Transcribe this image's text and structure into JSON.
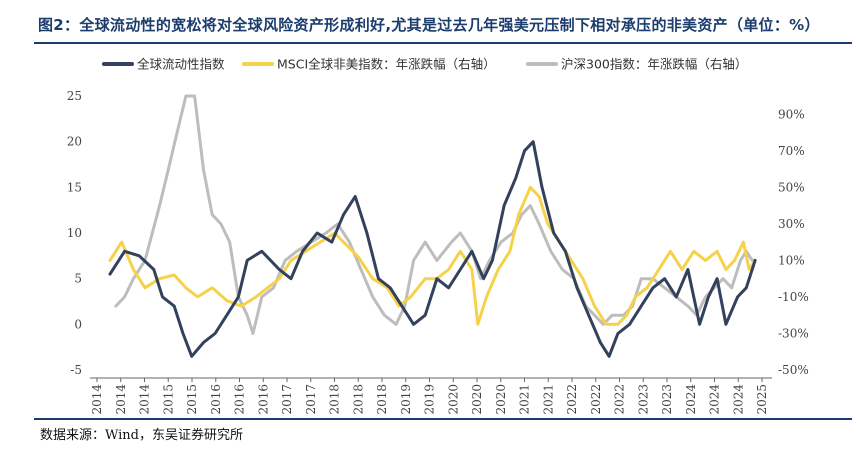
{
  "header": {
    "title": "图2：全球流动性的宽松将对全球风险资产形成利好,尤其是过去几年强美元压制下相对承压的非美资产（单位：%）"
  },
  "footer": {
    "source": "数据来源：Wind，东吴证券研究所"
  },
  "colors": {
    "title": "#1b3c6c",
    "series_liquidity": "#33415c",
    "series_msci": "#f5d24a",
    "series_csi300": "#bdbdbd"
  },
  "chart_data": {
    "type": "line",
    "x_ticks": [
      "2014",
      "2014",
      "2014",
      "2015",
      "2015",
      "2016",
      "2016",
      "2016",
      "2017",
      "2017",
      "2018",
      "2018",
      "2018",
      "2019",
      "2019",
      "2020",
      "2020",
      "2020",
      "2021",
      "2021",
      "2022",
      "2022",
      "2022",
      "2023",
      "2023",
      "2024",
      "2024",
      "2024",
      "2025"
    ],
    "left_axis": {
      "ticks": [
        "-5",
        "0",
        "5",
        "10",
        "15",
        "20",
        "25"
      ],
      "ylim": [
        -5,
        25
      ]
    },
    "right_axis": {
      "ticks": [
        "-50%",
        "-30%",
        "-10%",
        "10%",
        "30%",
        "50%",
        "70%",
        "90%"
      ],
      "ylim": [
        -50,
        100
      ]
    },
    "x_range": [
      2014.0,
      2025.1
    ],
    "series": [
      {
        "name": "全球流动性指数",
        "axis": "left",
        "color": "#33415c",
        "points": [
          [
            2014.0,
            5.5
          ],
          [
            2014.25,
            8
          ],
          [
            2014.5,
            7.5
          ],
          [
            2014.75,
            6
          ],
          [
            2014.9,
            3
          ],
          [
            2015.1,
            2
          ],
          [
            2015.25,
            -1
          ],
          [
            2015.4,
            -3.5
          ],
          [
            2015.6,
            -2
          ],
          [
            2015.8,
            -1
          ],
          [
            2016.0,
            1
          ],
          [
            2016.2,
            3
          ],
          [
            2016.35,
            7
          ],
          [
            2016.6,
            8
          ],
          [
            2016.9,
            6
          ],
          [
            2017.1,
            5
          ],
          [
            2017.3,
            8
          ],
          [
            2017.55,
            10
          ],
          [
            2017.8,
            9
          ],
          [
            2018.0,
            12
          ],
          [
            2018.2,
            14
          ],
          [
            2018.4,
            10
          ],
          [
            2018.6,
            5
          ],
          [
            2018.8,
            4
          ],
          [
            2019.0,
            2
          ],
          [
            2019.2,
            0
          ],
          [
            2019.4,
            1
          ],
          [
            2019.6,
            5
          ],
          [
            2019.8,
            4
          ],
          [
            2020.0,
            6
          ],
          [
            2020.2,
            8
          ],
          [
            2020.4,
            5
          ],
          [
            2020.55,
            7
          ],
          [
            2020.75,
            13
          ],
          [
            2020.95,
            16
          ],
          [
            2021.1,
            19
          ],
          [
            2021.25,
            20
          ],
          [
            2021.4,
            15
          ],
          [
            2021.6,
            10
          ],
          [
            2021.8,
            8
          ],
          [
            2022.0,
            4
          ],
          [
            2022.2,
            1
          ],
          [
            2022.4,
            -2
          ],
          [
            2022.55,
            -3.5
          ],
          [
            2022.7,
            -1
          ],
          [
            2022.9,
            0
          ],
          [
            2023.1,
            2
          ],
          [
            2023.3,
            4
          ],
          [
            2023.5,
            5
          ],
          [
            2023.7,
            3
          ],
          [
            2023.9,
            6
          ],
          [
            2024.1,
            0
          ],
          [
            2024.25,
            3
          ],
          [
            2024.4,
            5
          ],
          [
            2024.55,
            0
          ],
          [
            2024.75,
            3
          ],
          [
            2024.9,
            4
          ],
          [
            2025.05,
            7
          ]
        ]
      },
      {
        "name": "MSCI全球非美指数：年涨跌幅（右轴）",
        "axis": "right",
        "color": "#f5d24a",
        "points": [
          [
            2014.0,
            10
          ],
          [
            2014.2,
            20
          ],
          [
            2014.4,
            5
          ],
          [
            2014.6,
            -5
          ],
          [
            2014.85,
            0
          ],
          [
            2015.1,
            2
          ],
          [
            2015.3,
            -5
          ],
          [
            2015.5,
            -10
          ],
          [
            2015.75,
            -5
          ],
          [
            2016.0,
            -12
          ],
          [
            2016.25,
            -15
          ],
          [
            2016.5,
            -10
          ],
          [
            2016.7,
            -5
          ],
          [
            2016.9,
            0
          ],
          [
            2017.1,
            10
          ],
          [
            2017.35,
            15
          ],
          [
            2017.6,
            20
          ],
          [
            2017.85,
            25
          ],
          [
            2018.0,
            20
          ],
          [
            2018.25,
            12
          ],
          [
            2018.5,
            0
          ],
          [
            2018.75,
            -5
          ],
          [
            2018.95,
            -15
          ],
          [
            2019.15,
            -10
          ],
          [
            2019.4,
            0
          ],
          [
            2019.6,
            0
          ],
          [
            2019.8,
            5
          ],
          [
            2020.0,
            15
          ],
          [
            2020.2,
            5
          ],
          [
            2020.3,
            -25
          ],
          [
            2020.45,
            -10
          ],
          [
            2020.65,
            5
          ],
          [
            2020.85,
            15
          ],
          [
            2021.0,
            35
          ],
          [
            2021.2,
            50
          ],
          [
            2021.35,
            45
          ],
          [
            2021.5,
            30
          ],
          [
            2021.7,
            20
          ],
          [
            2021.9,
            10
          ],
          [
            2022.1,
            0
          ],
          [
            2022.3,
            -15
          ],
          [
            2022.5,
            -25
          ],
          [
            2022.7,
            -25
          ],
          [
            2022.85,
            -20
          ],
          [
            2023.0,
            -10
          ],
          [
            2023.2,
            -5
          ],
          [
            2023.4,
            5
          ],
          [
            2023.6,
            15
          ],
          [
            2023.8,
            5
          ],
          [
            2024.0,
            15
          ],
          [
            2024.2,
            10
          ],
          [
            2024.4,
            15
          ],
          [
            2024.55,
            5
          ],
          [
            2024.7,
            10
          ],
          [
            2024.85,
            20
          ],
          [
            2024.95,
            5
          ],
          [
            2025.05,
            10
          ]
        ]
      },
      {
        "name": "沪深300指数：年涨跌幅（右轴）",
        "axis": "right",
        "color": "#bdbdbd",
        "points": [
          [
            2014.1,
            -15
          ],
          [
            2014.25,
            -10
          ],
          [
            2014.4,
            0
          ],
          [
            2014.6,
            10
          ],
          [
            2014.85,
            40
          ],
          [
            2015.0,
            60
          ],
          [
            2015.15,
            80
          ],
          [
            2015.3,
            100
          ],
          [
            2015.45,
            100
          ],
          [
            2015.6,
            60
          ],
          [
            2015.75,
            35
          ],
          [
            2015.9,
            30
          ],
          [
            2016.05,
            20
          ],
          [
            2016.2,
            -10
          ],
          [
            2016.35,
            -20
          ],
          [
            2016.45,
            -30
          ],
          [
            2016.6,
            -10
          ],
          [
            2016.8,
            -5
          ],
          [
            2017.0,
            10
          ],
          [
            2017.2,
            15
          ],
          [
            2017.45,
            20
          ],
          [
            2017.7,
            25
          ],
          [
            2017.9,
            30
          ],
          [
            2018.1,
            20
          ],
          [
            2018.3,
            5
          ],
          [
            2018.5,
            -10
          ],
          [
            2018.7,
            -20
          ],
          [
            2018.9,
            -25
          ],
          [
            2019.05,
            -15
          ],
          [
            2019.2,
            10
          ],
          [
            2019.4,
            20
          ],
          [
            2019.6,
            10
          ],
          [
            2019.85,
            20
          ],
          [
            2020.0,
            25
          ],
          [
            2020.2,
            15
          ],
          [
            2020.35,
            0
          ],
          [
            2020.5,
            10
          ],
          [
            2020.7,
            20
          ],
          [
            2020.9,
            25
          ],
          [
            2021.05,
            35
          ],
          [
            2021.2,
            40
          ],
          [
            2021.35,
            30
          ],
          [
            2021.55,
            15
          ],
          [
            2021.75,
            5
          ],
          [
            2021.95,
            0
          ],
          [
            2022.15,
            -15
          ],
          [
            2022.3,
            -20
          ],
          [
            2022.45,
            -25
          ],
          [
            2022.6,
            -20
          ],
          [
            2022.8,
            -20
          ],
          [
            2022.95,
            -15
          ],
          [
            2023.1,
            0
          ],
          [
            2023.3,
            0
          ],
          [
            2023.5,
            -5
          ],
          [
            2023.7,
            -10
          ],
          [
            2023.9,
            -15
          ],
          [
            2024.05,
            -20
          ],
          [
            2024.2,
            -10
          ],
          [
            2024.35,
            -5
          ],
          [
            2024.5,
            0
          ],
          [
            2024.65,
            -5
          ],
          [
            2024.8,
            10
          ],
          [
            2024.9,
            15
          ],
          [
            2025.0,
            10
          ],
          [
            2025.05,
            10
          ]
        ]
      }
    ]
  }
}
